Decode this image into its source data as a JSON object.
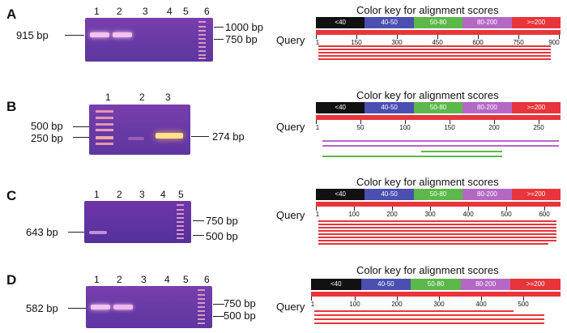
{
  "key": {
    "title": "Color key for alignment scores",
    "segments": [
      {
        "label": "<40",
        "color": "#111111"
      },
      {
        "label": "40-50",
        "color": "#4a4fb0"
      },
      {
        "label": "50-80",
        "color": "#5cb84a"
      },
      {
        "label": "80-200",
        "color": "#b468c4"
      },
      {
        "label": ">=200",
        "color": "#e8343a"
      }
    ],
    "query_label": "Query"
  },
  "panels": [
    {
      "label": "A",
      "lanes": [
        "1",
        "2",
        "3",
        "4",
        "5",
        "6"
      ],
      "left_labels": [
        "915 bp"
      ],
      "right_labels": [
        "1000 bp",
        "750 bp"
      ],
      "axis": [
        "1",
        "150",
        "300",
        "450",
        "600",
        "750",
        "900"
      ],
      "hit_colors": [
        "#e8343a",
        "#e8343a",
        "#e8343a",
        "#e8343a",
        "#e8343a"
      ]
    },
    {
      "label": "B",
      "lanes": [
        "1",
        "2",
        "3"
      ],
      "left_labels": [
        "500 bp",
        "250 bp"
      ],
      "right_labels": [
        "274 bp"
      ],
      "axis": [
        "1",
        "50",
        "100",
        "150",
        "200",
        "250"
      ],
      "hit_colors": [
        "#b468c4",
        "#b468c4",
        "#5cb84a",
        "#5cb84a"
      ]
    },
    {
      "label": "C",
      "lanes": [
        "1",
        "2",
        "3",
        "4",
        "5"
      ],
      "left_labels": [
        "643 bp"
      ],
      "right_labels": [
        "750 bp",
        "500 bp"
      ],
      "axis": [
        "1",
        "100",
        "200",
        "300",
        "400",
        "500",
        "600"
      ],
      "hit_colors": [
        "#e8343a",
        "#e8343a",
        "#e8343a",
        "#e8343a",
        "#e8343a",
        "#e8343a",
        "#e8343a",
        "#e8343a"
      ]
    },
    {
      "label": "D",
      "lanes": [
        "1",
        "2",
        "3",
        "4",
        "5",
        "6"
      ],
      "left_labels": [
        "582 bp"
      ],
      "right_labels": [
        "750 bp",
        "500 bp"
      ],
      "axis": [
        "1",
        "100",
        "200",
        "300",
        "400",
        "500"
      ],
      "hit_colors": [
        "#e8343a",
        "#e8343a",
        "#e8343a",
        "#e8343a"
      ]
    }
  ]
}
